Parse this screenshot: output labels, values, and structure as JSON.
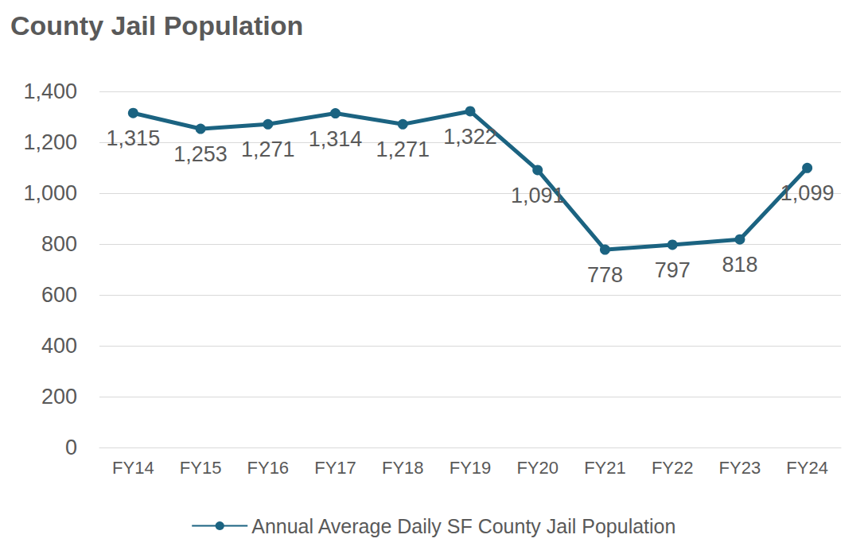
{
  "chart_data": {
    "type": "line",
    "title": "County Jail Population",
    "categories": [
      "FY14",
      "FY15",
      "FY16",
      "FY17",
      "FY18",
      "FY19",
      "FY20",
      "FY21",
      "FY22",
      "FY23",
      "FY24"
    ],
    "series": [
      {
        "name": "Annual Average Daily SF County Jail Population",
        "color": "#1b6381",
        "marker": "circle",
        "line_style": "solid",
        "values": [
          1315,
          1253,
          1271,
          1314,
          1271,
          1322,
          1091,
          778,
          797,
          818,
          1099
        ],
        "value_labels": [
          "1,315",
          "1,253",
          "1,271",
          "1,314",
          "1,271",
          "1,322",
          "1,091",
          "778",
          "797",
          "818",
          "1,099"
        ]
      }
    ],
    "ylim": [
      0,
      1400
    ],
    "yticks": [
      0,
      200,
      400,
      600,
      800,
      {
        "value": 1000,
        "label": "1,000"
      },
      {
        "value": 1200,
        "label": "1,200"
      },
      {
        "value": 1400,
        "label": "1,400"
      }
    ],
    "grid": true,
    "legend": "bottom",
    "data_labels": true
  }
}
